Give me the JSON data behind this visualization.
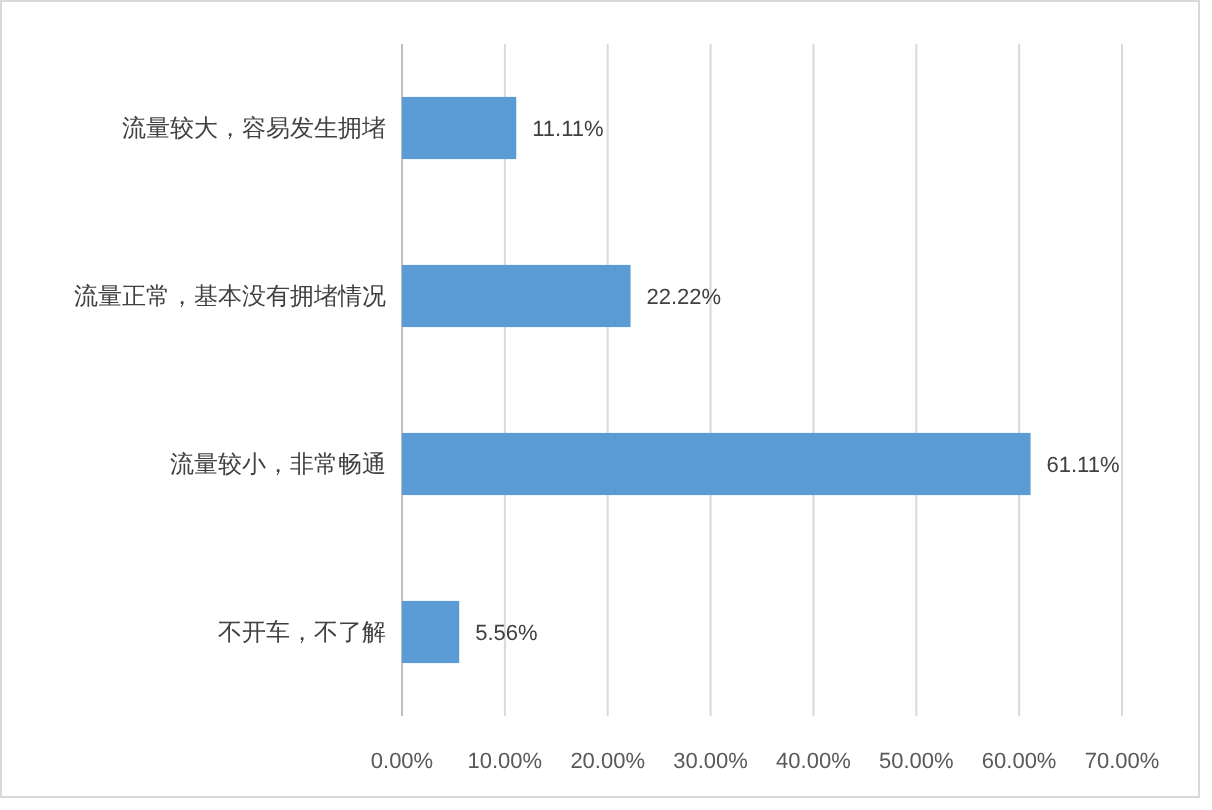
{
  "chart_data": {
    "type": "bar",
    "orientation": "horizontal",
    "categories": [
      "流量较大，容易发生拥堵",
      "流量正常，基本没有拥堵情况",
      "流量较小，非常畅通",
      "不开车，不了解"
    ],
    "values": [
      11.11,
      22.22,
      61.11,
      5.56
    ],
    "value_labels": [
      "11.11%",
      "22.22%",
      "61.11%",
      "5.56%"
    ],
    "color": "#5b9bd5",
    "xlim": [
      0,
      70
    ],
    "xticks": [
      {
        "value": 0,
        "label": "0.00%"
      },
      {
        "value": 10,
        "label": "10.00%"
      },
      {
        "value": 20,
        "label": "20.00%"
      },
      {
        "value": 30,
        "label": "30.00%"
      },
      {
        "value": 40,
        "label": "40.00%"
      },
      {
        "value": 50,
        "label": "50.00%"
      },
      {
        "value": 60,
        "label": "60.00%"
      },
      {
        "value": 70,
        "label": "70.00%"
      }
    ],
    "grid": "x"
  }
}
